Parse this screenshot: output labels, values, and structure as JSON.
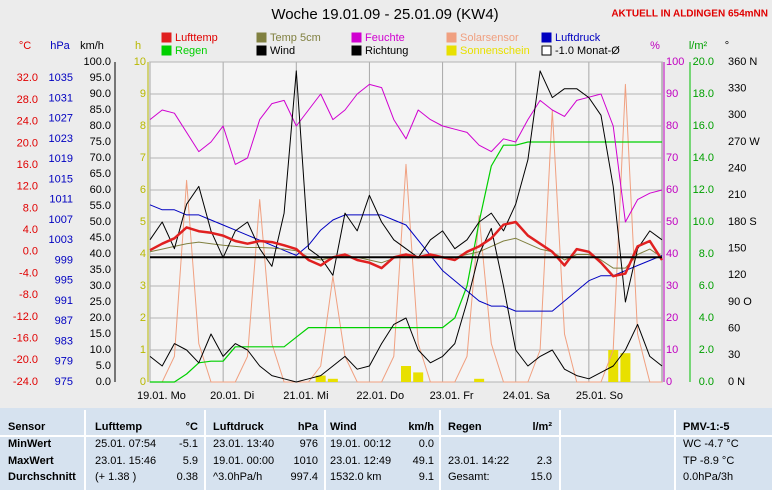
{
  "header": {
    "title": "Woche 19.01.09 - 25.01.09 (KW4)",
    "location": "AKTUELL IN ALDINGEN 654mNN"
  },
  "chart_data": {
    "type": "line",
    "x": [
      0,
      4,
      8,
      12,
      16,
      20,
      24,
      28,
      32,
      36,
      40,
      44,
      48,
      52,
      56,
      60,
      64,
      68,
      72,
      76,
      80,
      84,
      88,
      92,
      96,
      100,
      104,
      108,
      112,
      116,
      120,
      124,
      128,
      132,
      136,
      140,
      144,
      148,
      152,
      156,
      160,
      164,
      168
    ],
    "xlim": [
      0,
      168
    ],
    "categories": [
      "19.01. Mo",
      "20.01. Di",
      "21.01. Mi",
      "22.01. Do",
      "23.01. Fr",
      "24.01. Sa",
      "25.01. So"
    ],
    "grid": true,
    "axes": [
      {
        "id": "temp",
        "label": "°C",
        "color": "#e00000",
        "lim": [
          -24,
          35
        ],
        "ticks": [
          {
            "value": 32,
            "label": "32.0"
          },
          {
            "value": 28,
            "label": "28.0"
          },
          {
            "value": 24,
            "label": "24.0"
          },
          {
            "value": 20,
            "label": "20.0"
          },
          {
            "value": 16,
            "label": "16.0"
          },
          {
            "value": 12,
            "label": "12.0"
          },
          {
            "value": 8,
            "label": "8.0"
          },
          {
            "value": 4,
            "label": "4.0"
          },
          {
            "value": 0,
            "label": "0.0"
          },
          {
            "value": -4,
            "label": "-4.0"
          },
          {
            "value": -8,
            "label": "-8.0"
          },
          {
            "value": -12,
            "label": "-12.0"
          },
          {
            "value": -16,
            "label": "-16.0"
          },
          {
            "value": -20,
            "label": "-20.0"
          },
          {
            "value": -24,
            "label": "-24.0"
          }
        ]
      },
      {
        "id": "press",
        "label": "hPa",
        "color": "#0000c0",
        "lim": [
          975,
          1038.2
        ],
        "ticks": [
          1035,
          1031,
          1027,
          1023,
          1019,
          1015,
          1011,
          1007,
          1003,
          999,
          995,
          991,
          987,
          983,
          979,
          975
        ]
      },
      {
        "id": "wind",
        "label": "km/h",
        "color": "#000000",
        "lim": [
          0,
          100
        ],
        "ticks": [
          {
            "value": 100,
            "label": "100.0"
          },
          {
            "value": 95,
            "label": "95.0"
          },
          {
            "value": 90,
            "label": "90.0"
          },
          {
            "value": 85,
            "label": "85.0"
          },
          {
            "value": 80,
            "label": "80.0"
          },
          {
            "value": 75,
            "label": "75.0"
          },
          {
            "value": 70,
            "label": "70.0"
          },
          {
            "value": 65,
            "label": "65.0"
          },
          {
            "value": 60,
            "label": "60.0"
          },
          {
            "value": 55,
            "label": "55.0"
          },
          {
            "value": 50,
            "label": "50.0"
          },
          {
            "value": 45,
            "label": "45.0"
          },
          {
            "value": 40,
            "label": "40.0"
          },
          {
            "value": 35,
            "label": "35.0"
          },
          {
            "value": 30,
            "label": "30.0"
          },
          {
            "value": 25,
            "label": "25.0"
          },
          {
            "value": 20,
            "label": "20.0"
          },
          {
            "value": 15,
            "label": "15.0"
          },
          {
            "value": 10,
            "label": "10.0"
          },
          {
            "value": 5,
            "label": "5.0"
          },
          {
            "value": 0,
            "label": "0.0"
          }
        ]
      },
      {
        "id": "sun",
        "label": "h",
        "color": "#b8b800",
        "lim": [
          0,
          10
        ],
        "ticks": [
          10,
          9,
          8,
          7,
          6,
          5,
          4,
          3,
          2,
          1,
          0
        ],
        "grid": true
      },
      {
        "id": "hum",
        "label": "%",
        "color": "#c000c0",
        "lim": [
          0,
          100
        ],
        "ticks": [
          100,
          90,
          80,
          70,
          60,
          50,
          40,
          30,
          20,
          10,
          0
        ]
      },
      {
        "id": "rain",
        "label": "l/m²",
        "color": "#00a000",
        "lim": [
          0,
          20
        ],
        "ticks": [
          {
            "value": 20,
            "label": "20.0"
          },
          {
            "value": 18,
            "label": "18.0"
          },
          {
            "value": 16,
            "label": "16.0"
          },
          {
            "value": 14,
            "label": "14.0"
          },
          {
            "value": 12,
            "label": "12.0"
          },
          {
            "value": 10,
            "label": "10.0"
          },
          {
            "value": 8,
            "label": "8.0"
          },
          {
            "value": 6,
            "label": "6.0"
          },
          {
            "value": 4,
            "label": "4.0"
          },
          {
            "value": 2,
            "label": "2.0"
          },
          {
            "value": 0,
            "label": "0.0"
          }
        ]
      },
      {
        "id": "dir",
        "label": "°",
        "color": "#000000",
        "lim": [
          0,
          360
        ],
        "ticks": [
          {
            "value": 360,
            "label": "360 N"
          },
          330,
          300,
          {
            "value": 270,
            "label": "270 W"
          },
          240,
          210,
          {
            "value": 180,
            "label": "180 S"
          },
          150,
          120,
          {
            "value": 90,
            "label": "90 O"
          },
          60,
          30,
          {
            "value": 0,
            "label": "0 N"
          }
        ]
      }
    ],
    "series": [
      {
        "name": "Lufttemp",
        "color": "#e02020",
        "axis": "temp",
        "kind": "line",
        "width": 2.5,
        "values": [
          0.3,
          1.5,
          2.5,
          4.5,
          3.8,
          3.5,
          3.0,
          2.0,
          1.5,
          2.0,
          1.8,
          1.2,
          0.5,
          -1.5,
          -2.5,
          -1.0,
          -0.5,
          -1.5,
          -2.0,
          -3.0,
          -1.0,
          -0.5,
          -1.0,
          -0.5,
          -1.0,
          -1.5,
          0.0,
          1.0,
          2.5,
          5.0,
          5.5,
          3.0,
          1.5,
          0.0,
          -2.5,
          0.5,
          0.0,
          -2.0,
          -4.5,
          -4.0,
          1.0,
          2.0,
          -1.5
        ]
      },
      {
        "name": "Regen",
        "color": "#00d000",
        "axis": "rain",
        "kind": "line",
        "width": 1.2,
        "values": [
          0,
          0,
          0,
          0.5,
          1.2,
          1.3,
          1.3,
          2.2,
          2.2,
          2.2,
          2.2,
          2.2,
          2.8,
          3.4,
          3.4,
          3.4,
          3.4,
          3.4,
          3.4,
          3.4,
          3.4,
          3.4,
          3.4,
          3.4,
          3.4,
          4.0,
          6.0,
          10.0,
          13.5,
          14.8,
          14.8,
          15.0,
          15.0,
          15.0,
          15.0,
          15.0,
          15.0,
          15.0,
          15.0,
          15.0,
          15.0,
          15.0,
          15.0
        ]
      },
      {
        "name": "Temp 5cm",
        "color": "#808040",
        "axis": "temp",
        "kind": "line",
        "width": 1,
        "values": [
          0.0,
          0.5,
          1.0,
          1.5,
          1.8,
          1.5,
          1.2,
          1.0,
          0.8,
          0.8,
          0.7,
          0.5,
          0.2,
          -1.0,
          -1.5,
          -1.0,
          -0.8,
          -1.0,
          -1.5,
          -2.0,
          -1.2,
          -0.8,
          -1.0,
          -0.8,
          -1.0,
          -1.0,
          -0.5,
          0.0,
          1.0,
          2.0,
          2.5,
          1.5,
          0.5,
          0.0,
          -1.5,
          -0.5,
          -0.5,
          -1.5,
          -3.0,
          -3.0,
          -0.5,
          0.5,
          -1.0
        ]
      },
      {
        "name": "Wind",
        "color": "#000000",
        "axis": "wind",
        "kind": "line",
        "width": 1,
        "values": [
          8,
          5,
          12,
          10,
          6,
          15,
          8,
          12,
          10,
          5,
          2,
          1,
          0,
          1,
          2,
          5,
          8,
          4,
          5,
          12,
          18,
          20,
          10,
          6,
          8,
          12,
          25,
          40,
          48,
          30,
          10,
          5,
          8,
          10,
          4,
          2,
          1,
          3,
          5,
          10,
          18,
          8,
          5
        ]
      },
      {
        "name": "Feuchte",
        "color": "#d000d0",
        "axis": "hum",
        "kind": "line",
        "width": 1,
        "values": [
          82,
          85,
          84,
          78,
          72,
          75,
          80,
          68,
          70,
          82,
          87,
          88,
          80,
          85,
          90,
          82,
          85,
          90,
          93,
          92,
          82,
          76,
          85,
          82,
          80,
          79,
          78,
          74,
          72,
          76,
          75,
          82,
          88,
          85,
          83,
          88,
          89,
          90,
          80,
          50,
          57,
          59,
          60
        ]
      },
      {
        "name": "Richtung",
        "color": "#000000",
        "axis": "dir",
        "kind": "line",
        "width": 1,
        "values": [
          160,
          180,
          150,
          200,
          220,
          170,
          140,
          170,
          180,
          150,
          130,
          190,
          350,
          150,
          140,
          120,
          190,
          170,
          210,
          180,
          160,
          150,
          140,
          160,
          170,
          150,
          160,
          180,
          190,
          170,
          200,
          250,
          350,
          320,
          330,
          330,
          320,
          300,
          220,
          90,
          150,
          170,
          160
        ]
      },
      {
        "name": "Solarsensor",
        "color": "#f0a080",
        "axis": "hum",
        "kind": "line",
        "width": 1,
        "values": [
          0,
          0,
          8,
          63,
          12,
          0,
          0,
          0,
          8,
          57,
          12,
          0,
          0,
          0,
          5,
          33,
          8,
          0,
          0,
          0,
          8,
          68,
          12,
          0,
          0,
          0,
          8,
          52,
          12,
          0,
          0,
          0,
          10,
          85,
          15,
          0,
          0,
          0,
          10,
          93,
          15,
          0,
          0
        ]
      },
      {
        "name": "Sonnenschein",
        "color": "#e8e000",
        "axis": "sun",
        "kind": "bars",
        "values": [
          0,
          0,
          0,
          0,
          0,
          0,
          0,
          0,
          0,
          0,
          0,
          0,
          0,
          0,
          0.2,
          0.1,
          0,
          0,
          0,
          0,
          0,
          0.5,
          0.3,
          0,
          0,
          0,
          0,
          0.1,
          0,
          0,
          0,
          0,
          0,
          0,
          0,
          0,
          0,
          0,
          1.0,
          0.9,
          0,
          0,
          0
        ]
      },
      {
        "name": "Luftdruck",
        "color": "#0000c0",
        "axis": "press",
        "kind": "line",
        "width": 1,
        "values": [
          1010,
          1009,
          1009,
          1008,
          1008,
          1007,
          1006,
          1005,
          1004,
          1003,
          1002,
          1001,
          1000,
          1002,
          1005,
          1007,
          1008,
          1008,
          1008,
          1008,
          1007,
          1006,
          1003,
          1000,
          997,
          995,
          993,
          991,
          990,
          990,
          989,
          989,
          989,
          989,
          991,
          993,
          995,
          996,
          996,
          997,
          998,
          999,
          1000
        ]
      },
      {
        "name": "-1.0 Monat-Ø",
        "color": "#000000",
        "axis": "temp",
        "kind": "hline",
        "value": -1.0
      }
    ]
  },
  "table": {
    "row_labels": [
      "Sensor",
      "MinWert",
      "MaxWert",
      "Durchschnitt"
    ],
    "columns": [
      {
        "title": "Lufttemp",
        "unit": "°C",
        "cells": [
          [
            "25.01. 07:54",
            "-5.1"
          ],
          [
            "23.01. 15:46",
            "5.9"
          ],
          [
            "(+ 1.38 )",
            "0.38"
          ]
        ]
      },
      {
        "title": "Luftdruck",
        "unit": "hPa",
        "cells": [
          [
            "23.01. 13:40",
            "976"
          ],
          [
            "19.01. 00:00",
            "1010"
          ],
          [
            "^3.0hPa/h",
            "997.4"
          ]
        ]
      },
      {
        "title": "Wind",
        "unit": "km/h",
        "cells": [
          [
            "19.01. 00:12",
            "0.0"
          ],
          [
            "23.01. 12:49",
            "49.1"
          ],
          [
            "1532.0 km",
            "9.1"
          ]
        ]
      },
      {
        "title": "Regen",
        "unit": "l/m²",
        "cells": [
          [],
          [
            "23.01. 14:22",
            "2.3"
          ],
          [
            "Gesamt:",
            "15.0"
          ]
        ]
      },
      {
        "title": "PMV-1:-5",
        "cells": [
          [
            "WC -4.7 °C"
          ],
          [
            "TP -8.9 °C"
          ],
          [
            "0.0hPa/3h"
          ]
        ]
      }
    ]
  }
}
